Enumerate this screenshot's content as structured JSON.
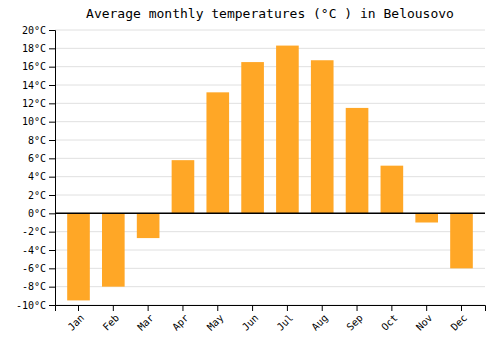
{
  "chart_data": {
    "type": "bar",
    "title": "Average monthly temperatures (°C ) in Belousovo",
    "categories": [
      "Jan",
      "Feb",
      "Mar",
      "Apr",
      "May",
      "Jun",
      "Jul",
      "Aug",
      "Sep",
      "Oct",
      "Nov",
      "Dec"
    ],
    "values": [
      -9.5,
      -8.0,
      -2.7,
      5.8,
      13.2,
      16.5,
      18.3,
      16.7,
      11.5,
      5.2,
      -1.0,
      -6.0
    ],
    "color": "#FFA726",
    "ylim": [
      -10,
      20
    ],
    "yticks": [
      {
        "value": -10,
        "label": "-10°C"
      },
      {
        "value": -8,
        "label": "-8°C"
      },
      {
        "value": -6,
        "label": "-6°C"
      },
      {
        "value": -4,
        "label": "-4°C"
      },
      {
        "value": -2,
        "label": "-2°C"
      },
      {
        "value": 0,
        "label": "0°C"
      },
      {
        "value": 2,
        "label": "2°C"
      },
      {
        "value": 4,
        "label": "4°C"
      },
      {
        "value": 6,
        "label": "6°C"
      },
      {
        "value": 8,
        "label": "8°C"
      },
      {
        "value": 10,
        "label": "10°C"
      },
      {
        "value": 12,
        "label": "12°C"
      },
      {
        "value": 14,
        "label": "14°C"
      },
      {
        "value": 16,
        "label": "16°C"
      },
      {
        "value": 18,
        "label": "18°C"
      },
      {
        "value": 20,
        "label": "20°C"
      }
    ],
    "grid": true
  }
}
